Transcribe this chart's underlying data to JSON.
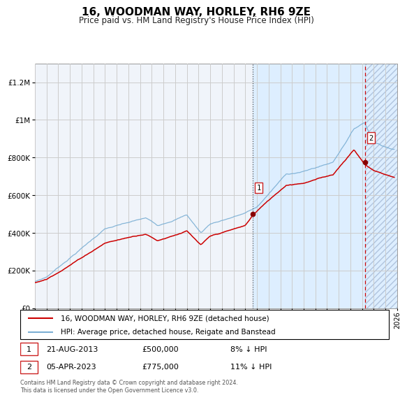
{
  "title": "16, WOODMAN WAY, HORLEY, RH6 9ZE",
  "subtitle": "Price paid vs. HM Land Registry's House Price Index (HPI)",
  "legend_line1": "16, WOODMAN WAY, HORLEY, RH6 9ZE (detached house)",
  "legend_line2": "HPI: Average price, detached house, Reigate and Banstead",
  "footer": "Contains HM Land Registry data © Crown copyright and database right 2024.\nThis data is licensed under the Open Government Licence v3.0.",
  "sale1_label": "1",
  "sale1_date": "21-AUG-2013",
  "sale1_price": "£500,000",
  "sale1_pct": "8% ↓ HPI",
  "sale2_label": "2",
  "sale2_date": "05-APR-2023",
  "sale2_price": "£775,000",
  "sale2_pct": "11% ↓ HPI",
  "sale1_year": 2013.64,
  "sale1_value": 500000,
  "sale2_year": 2023.26,
  "sale2_value": 775000,
  "red_line_color": "#cc0000",
  "blue_line_color": "#7bafd4",
  "shade_color": "#ddeeff",
  "grid_color": "#cccccc",
  "bg_color": "#ffffff",
  "plot_bg": "#f0f4fa",
  "ylim_max": 1300000,
  "xmin": 1995,
  "xmax": 2026,
  "title_fontsize": 11,
  "subtitle_fontsize": 8.5
}
